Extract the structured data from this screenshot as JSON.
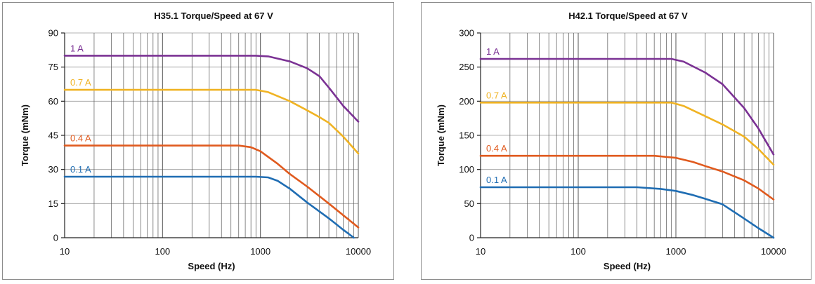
{
  "chart_data": [
    {
      "type": "line",
      "title": "H35.1 Torque/Speed at 67 V",
      "xlabel": "Speed (Hz)",
      "ylabel": "Torque (mNm)",
      "xscale": "log",
      "xlim": [
        10,
        10000
      ],
      "ylim": [
        0,
        90
      ],
      "xticks": [
        "10",
        "100",
        "1000",
        "10000"
      ],
      "yticks": [
        "0",
        "15",
        "30",
        "45",
        "60",
        "75",
        "90"
      ],
      "grid": true,
      "series": [
        {
          "name": "1 A",
          "color": "#7b3294",
          "x": [
            10,
            100,
            900,
            1200,
            2000,
            3000,
            4000,
            5000,
            7000,
            10000
          ],
          "y": [
            80,
            80,
            80,
            79.7,
            77.5,
            74.5,
            71,
            66,
            58,
            51
          ]
        },
        {
          "name": "0.7 A",
          "color": "#f0b323",
          "x": [
            10,
            100,
            900,
            1200,
            2000,
            3000,
            4000,
            5000,
            7000,
            10000
          ],
          "y": [
            65,
            65,
            65,
            64,
            60,
            56,
            53,
            50.5,
            44.5,
            37
          ]
        },
        {
          "name": "0.4 A",
          "color": "#e05a1e",
          "x": [
            10,
            100,
            600,
            800,
            1000,
            1500,
            2000,
            3000,
            5000,
            10000
          ],
          "y": [
            40.5,
            40.5,
            40.5,
            39.8,
            38,
            32.5,
            28,
            22.5,
            15,
            4.5
          ]
        },
        {
          "name": "0.1 A",
          "color": "#1f6db3",
          "x": [
            10,
            100,
            900,
            1200,
            1500,
            2000,
            3000,
            5000,
            7000,
            9000
          ],
          "y": [
            26.8,
            26.8,
            26.8,
            26.5,
            25,
            21.5,
            15.5,
            8.5,
            3.5,
            0
          ]
        }
      ]
    },
    {
      "type": "line",
      "title": "H42.1 Torque/Speed at 67 V",
      "xlabel": "Speed (Hz)",
      "ylabel": "Torque (mNm)",
      "xscale": "log",
      "xlim": [
        10,
        10000
      ],
      "ylim": [
        0,
        300
      ],
      "xticks": [
        "10",
        "100",
        "1000",
        "10000"
      ],
      "yticks": [
        "0",
        "50",
        "100",
        "150",
        "200",
        "250",
        "300"
      ],
      "grid": true,
      "series": [
        {
          "name": "1 A",
          "color": "#7b3294",
          "x": [
            10,
            100,
            900,
            1200,
            2000,
            3000,
            5000,
            7000,
            10000
          ],
          "y": [
            262,
            262,
            262,
            258,
            242,
            225,
            190,
            160,
            122
          ]
        },
        {
          "name": "0.7 A",
          "color": "#f0b323",
          "x": [
            10,
            100,
            900,
            1200,
            2000,
            3000,
            5000,
            7000,
            10000
          ],
          "y": [
            198,
            198,
            198,
            193,
            178,
            166,
            148,
            130,
            107
          ]
        },
        {
          "name": "0.4 A",
          "color": "#e05a1e",
          "x": [
            10,
            100,
            600,
            1000,
            1500,
            2000,
            3000,
            5000,
            7000,
            10000
          ],
          "y": [
            120,
            120,
            120,
            117,
            111,
            105,
            97,
            84,
            72,
            56
          ]
        },
        {
          "name": "0.1 A",
          "color": "#1f6db3",
          "x": [
            10,
            100,
            400,
            700,
            1000,
            1500,
            2000,
            3000,
            5000,
            7000,
            10000
          ],
          "y": [
            74,
            74,
            74,
            71.5,
            68.5,
            62.5,
            57,
            49,
            28,
            14,
            0
          ]
        }
      ]
    }
  ]
}
